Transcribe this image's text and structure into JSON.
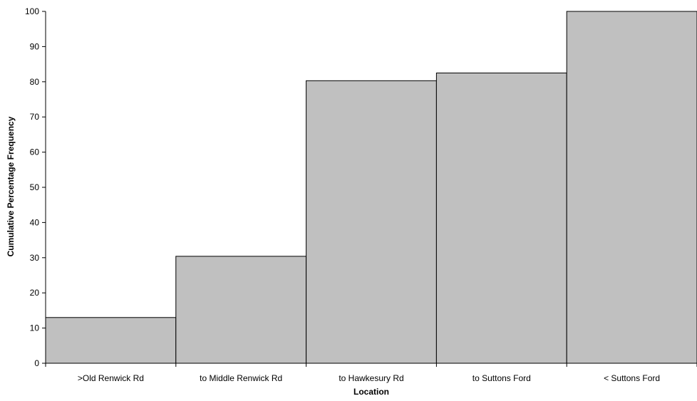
{
  "chart_data": {
    "type": "bar",
    "title": "",
    "xlabel": "Location",
    "ylabel": "Cumulative Percentage Frequency",
    "categories": [
      ">Old Renwick Rd",
      "to Middle Renwick Rd",
      "to Hawkesury Rd",
      "to Suttons Ford",
      "< Suttons Ford"
    ],
    "values": [
      13,
      30.4,
      80.3,
      82.5,
      100
    ],
    "ylim": [
      0,
      100
    ],
    "yticks": [
      0,
      10,
      20,
      30,
      40,
      50,
      60,
      70,
      80,
      90,
      100
    ],
    "grid": false,
    "legend": "none",
    "colors": {
      "bar_fill": "#c0c0c0",
      "bar_stroke": "#000000",
      "axis": "#000000"
    }
  }
}
